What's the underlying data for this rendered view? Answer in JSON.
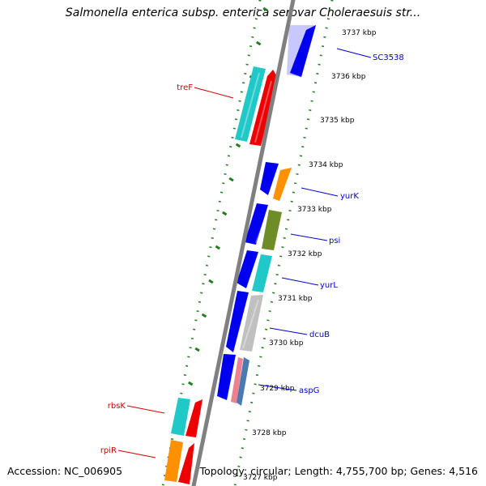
{
  "title": "Salmonella enterica subsp. enterica serovar Choleraesuis str...",
  "footer": {
    "accession": "Accession: NC_006905",
    "summary": "Topology: circular; Length: 4,755,700 bp; Genes: 4,516"
  },
  "colors": {
    "backbone": "#808080",
    "tick": "#1e7d1e",
    "label_forward": "#d40000",
    "label_reverse": "#0000cc",
    "blue": "#0000ee",
    "cyan": "#20c8c8",
    "red": "#ee0000",
    "orange": "#ff9000",
    "olive": "#6e8c28",
    "silver": "#c0c0c0",
    "pink": "#ee8090",
    "steelblue": "#4a7ab0",
    "lavender": "#c8c8ff"
  },
  "ticks": [
    "3737 kbp",
    "3736 kbp",
    "3735 kbp",
    "3734 kbp",
    "3733 kbp",
    "3732 kbp",
    "3731 kbp",
    "3730 kbp",
    "3729 kbp",
    "3728 kbp",
    "3727 kbp"
  ],
  "gene_labels": [
    {
      "name": "SC3538",
      "strand": "reverse"
    },
    {
      "name": "treF",
      "strand": "forward"
    },
    {
      "name": "yurK",
      "strand": "reverse"
    },
    {
      "name": "psi",
      "strand": "reverse"
    },
    {
      "name": "yurL",
      "strand": "reverse"
    },
    {
      "name": "dcuB",
      "strand": "reverse"
    },
    {
      "name": "aspG",
      "strand": "reverse"
    },
    {
      "name": "rbsK",
      "strand": "forward"
    },
    {
      "name": "rpiR",
      "strand": "forward"
    }
  ],
  "features": [
    {
      "name": "SC3538-lead",
      "color": "lavender"
    },
    {
      "name": "SC3538",
      "color": "blue"
    },
    {
      "name": "treF-cyan",
      "color": "cyan"
    },
    {
      "name": "treF",
      "color": "red"
    },
    {
      "name": "gene-3734-blue",
      "color": "blue"
    },
    {
      "name": "yurK",
      "color": "orange"
    },
    {
      "name": "gene-3733-blue",
      "color": "blue"
    },
    {
      "name": "psi",
      "color": "olive"
    },
    {
      "name": "gene-3732-blue",
      "color": "blue"
    },
    {
      "name": "yurL",
      "color": "cyan"
    },
    {
      "name": "gene-3731-blue",
      "color": "blue"
    },
    {
      "name": "dcuB",
      "color": "silver"
    },
    {
      "name": "gene-3729-blue",
      "color": "blue"
    },
    {
      "name": "aspG-pink",
      "color": "pink"
    },
    {
      "name": "aspG",
      "color": "steelblue"
    },
    {
      "name": "rbsK-cyan",
      "color": "cyan"
    },
    {
      "name": "rbsK",
      "color": "red"
    },
    {
      "name": "rpiR-orange",
      "color": "orange"
    },
    {
      "name": "rpiR",
      "color": "red"
    }
  ]
}
